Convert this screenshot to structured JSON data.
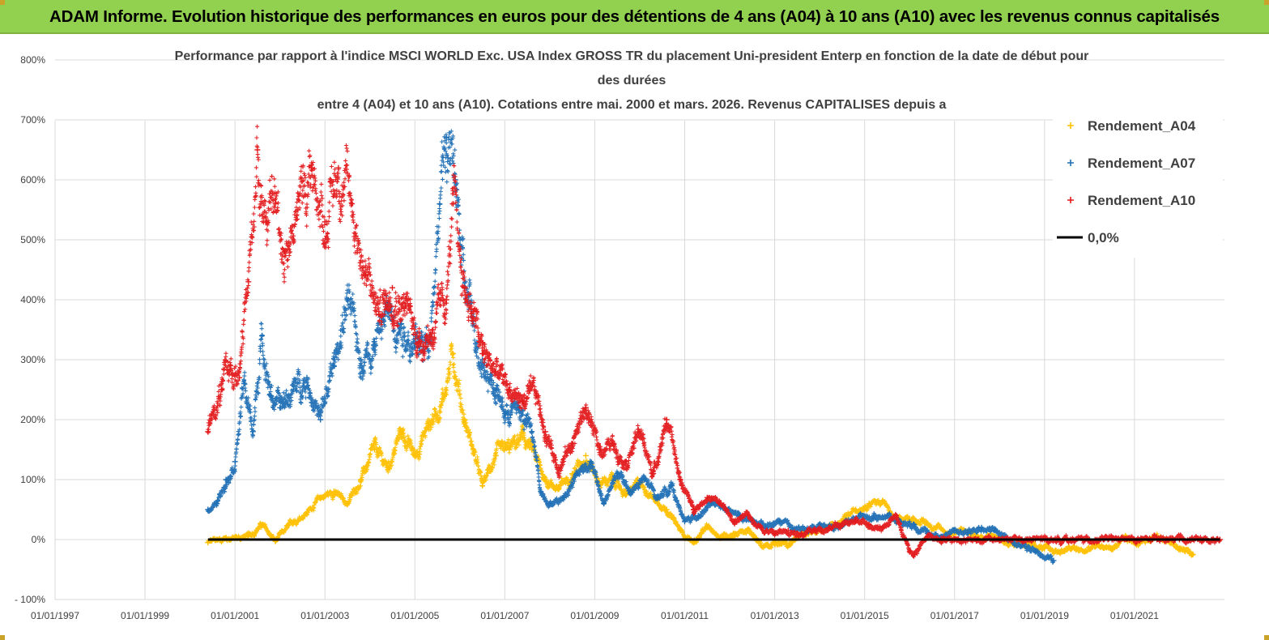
{
  "banner": {
    "title": "ADAM Informe. Evolution historique des performances en euros pour des détentions de 4 ans (A04) à 10 ans (A10) avec les revenus connus capitalisés",
    "background": "#92d050"
  },
  "chart_data": {
    "type": "scatter",
    "title_lines": [
      "Performance par rapport à l'indice MSCI WORLD Exc. USA Index GROSS TR  du placement Uni-president Enterp  en fonction de la date de début pour",
      "des durées",
      "entre 4 (A04) et 10 ans (A10). Cotations entre mai. 2000 et mars. 2026. Revenus CAPITALISES depuis a"
    ],
    "x_axis": {
      "type": "date",
      "range": [
        "1997-01-01",
        "2022-12-31"
      ],
      "tick_labels": [
        "01/01/1997",
        "01/01/1999",
        "01/01/2001",
        "01/01/2003",
        "01/01/2005",
        "01/01/2007",
        "01/01/2009",
        "01/01/2011",
        "01/01/2013",
        "01/01/2015",
        "01/01/2017",
        "01/01/2019",
        "01/01/2021"
      ],
      "tick_years": [
        1997,
        1999,
        2001,
        2003,
        2005,
        2007,
        2009,
        2011,
        2013,
        2015,
        2017,
        2019,
        2021
      ]
    },
    "y_axis": {
      "unit": "%",
      "range": [
        -100,
        800
      ],
      "ticks": [
        -100,
        0,
        100,
        200,
        300,
        400,
        500,
        600,
        700,
        800
      ],
      "tick_labels": [
        "- 100%",
        "0%",
        "100%",
        "200%",
        "300%",
        "400%",
        "500%",
        "600%",
        "700%",
        "800%"
      ]
    },
    "grid": "horizontal and vertical",
    "legend_position": "right",
    "series": [
      {
        "name": "Rendement_A04",
        "color": "#ffc000",
        "marker": "+",
        "x": [
          2000.4,
          2000.8,
          2001.0,
          2001.3,
          2001.6,
          2001.9,
          2002.3,
          2002.6,
          2002.9,
          2003.2,
          2003.5,
          2003.8,
          2004.1,
          2004.4,
          2004.7,
          2005.0,
          2005.3,
          2005.6,
          2005.85,
          2006.1,
          2006.3,
          2006.5,
          2006.8,
          2007.1,
          2007.4,
          2007.6,
          2007.9,
          2008.2,
          2008.5,
          2008.8,
          2009.1,
          2009.4,
          2009.7,
          2010.0,
          2010.3,
          2010.6,
          2010.9,
          2011.2,
          2011.5,
          2011.8,
          2012.1,
          2012.4,
          2012.7,
          2013.0,
          2013.3,
          2013.6,
          2013.9,
          2014.2,
          2014.5,
          2014.8,
          2015.1,
          2015.4,
          2015.7,
          2016.0,
          2016.3,
          2016.6,
          2016.9,
          2017.2,
          2017.5,
          2017.8,
          2018.1,
          2018.4,
          2018.7,
          2019.0,
          2019.3,
          2019.6,
          2019.9,
          2020.2,
          2020.5,
          2020.8,
          2021.1,
          2021.4,
          2021.7,
          2022.0,
          2022.3
        ],
        "y": [
          -5,
          3,
          2,
          5,
          25,
          -3,
          30,
          45,
          70,
          80,
          60,
          100,
          150,
          120,
          180,
          140,
          190,
          230,
          310,
          200,
          150,
          90,
          140,
          150,
          170,
          150,
          100,
          85,
          110,
          140,
          95,
          100,
          75,
          95,
          70,
          50,
          15,
          -5,
          20,
          5,
          10,
          15,
          -10,
          -5,
          -10,
          10,
          15,
          20,
          30,
          50,
          60,
          65,
          30,
          35,
          30,
          20,
          10,
          15,
          5,
          10,
          -5,
          -5,
          -10,
          -15,
          -20,
          -15,
          -20,
          -10,
          -15,
          0,
          -5,
          5,
          0,
          -15,
          -25
        ]
      },
      {
        "name": "Rendement_A07",
        "color": "#1f6fb5",
        "marker": "+",
        "x": [
          2000.4,
          2000.6,
          2000.8,
          2001.0,
          2001.2,
          2001.4,
          2001.6,
          2001.8,
          2002.0,
          2002.3,
          2002.6,
          2002.9,
          2003.2,
          2003.5,
          2003.8,
          2004.1,
          2004.4,
          2004.7,
          2005.0,
          2005.3,
          2005.55,
          2005.7,
          2005.9,
          2006.1,
          2006.3,
          2006.5,
          2006.8,
          2007.0,
          2007.3,
          2007.6,
          2007.8,
          2008.0,
          2008.3,
          2008.6,
          2008.9,
          2009.2,
          2009.5,
          2009.8,
          2010.1,
          2010.4,
          2010.7,
          2011.0,
          2011.3,
          2011.6,
          2011.9,
          2012.2,
          2012.5,
          2012.8,
          2013.1,
          2013.4,
          2013.7,
          2014.0,
          2014.3,
          2014.6,
          2014.9,
          2015.2,
          2015.5,
          2015.8,
          2016.1,
          2016.4,
          2016.7,
          2017.0,
          2017.3,
          2017.6,
          2017.9,
          2018.2,
          2018.5,
          2018.8,
          2019.1,
          2019.2
        ],
        "y": [
          50,
          60,
          100,
          130,
          260,
          180,
          340,
          240,
          220,
          250,
          270,
          200,
          290,
          400,
          300,
          330,
          380,
          360,
          320,
          330,
          560,
          670,
          600,
          420,
          360,
          300,
          250,
          210,
          220,
          180,
          80,
          60,
          70,
          110,
          130,
          60,
          110,
          80,
          100,
          70,
          90,
          30,
          40,
          60,
          50,
          40,
          30,
          20,
          30,
          20,
          15,
          25,
          20,
          30,
          40,
          35,
          40,
          30,
          25,
          10,
          5,
          15,
          10,
          20,
          15,
          0,
          -10,
          -20,
          -30,
          -35
        ]
      },
      {
        "name": "Rendement_A10",
        "color": "#e31a1c",
        "marker": "+",
        "x": [
          2000.4,
          2000.7,
          2000.9,
          2001.1,
          2001.3,
          2001.5,
          2001.7,
          2001.9,
          2002.1,
          2002.4,
          2002.7,
          2003.0,
          2003.3,
          2003.6,
          2003.9,
          2004.2,
          2004.5,
          2004.8,
          2005.1,
          2005.4,
          2005.7,
          2005.85,
          2006.1,
          2006.3,
          2006.5,
          2006.8,
          2007.1,
          2007.4,
          2007.7,
          2007.9,
          2008.2,
          2008.5,
          2008.8,
          2009.1,
          2009.4,
          2009.7,
          2010.0,
          2010.3,
          2010.6,
          2010.9,
          2011.2,
          2011.5,
          2011.8,
          2012.1,
          2012.4,
          2012.7,
          2013.0,
          2013.3,
          2013.6,
          2013.9,
          2014.2,
          2014.5,
          2014.8,
          2015.1,
          2015.4,
          2015.7,
          2016.0,
          2016.1,
          2016.4,
          2016.7,
          2017.0,
          2017.5,
          2018.0,
          2018.5,
          2019.0,
          2019.5,
          2020.0,
          2020.5,
          2021.0,
          2021.5,
          2022.0,
          2022.5,
          2022.9
        ],
        "y": [
          180,
          250,
          290,
          270,
          430,
          650,
          530,
          560,
          480,
          550,
          620,
          530,
          620,
          560,
          440,
          380,
          420,
          390,
          330,
          350,
          400,
          560,
          420,
          380,
          310,
          280,
          250,
          230,
          240,
          180,
          120,
          160,
          220,
          150,
          160,
          130,
          180,
          110,
          200,
          100,
          50,
          70,
          60,
          30,
          40,
          20,
          10,
          15,
          10,
          15,
          20,
          25,
          30,
          25,
          20,
          40,
          -20,
          -25,
          5,
          2,
          1,
          0,
          0,
          0,
          0,
          0,
          0,
          0,
          0,
          0,
          0,
          0,
          0
        ]
      },
      {
        "name": "0,0%",
        "color": "#000000",
        "line": true,
        "x": [
          2000.4,
          2022.9
        ],
        "y": [
          0,
          0
        ]
      }
    ]
  }
}
